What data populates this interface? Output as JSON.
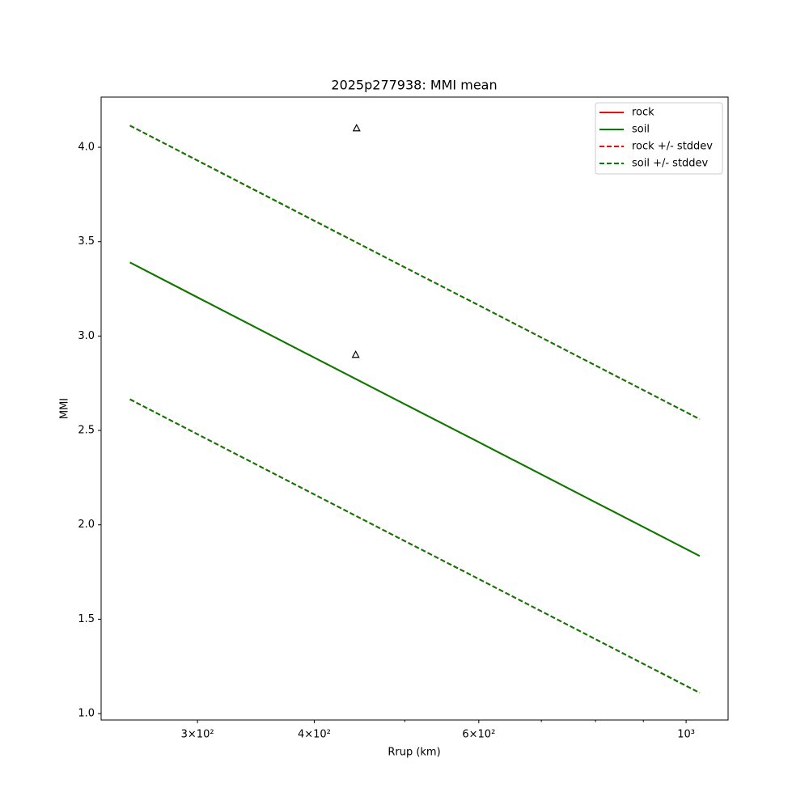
{
  "chart_data": {
    "type": "line",
    "title": "2025p277938: MMI mean",
    "xlabel": "Rrup (km)",
    "ylabel": "MMI",
    "xscale": "log",
    "x": [
      254,
      300,
      400,
      500,
      600,
      800,
      1034
    ],
    "series": [
      {
        "name": "rock",
        "color": "#ff0000",
        "style": "solid",
        "values": [
          3.39,
          3.205,
          2.886,
          2.639,
          2.438,
          2.119,
          1.835
        ]
      },
      {
        "name": "soil",
        "color": "#008000",
        "style": "solid",
        "values": [
          3.39,
          3.205,
          2.886,
          2.639,
          2.438,
          2.119,
          1.835
        ]
      },
      {
        "name": "rock +/- stddev",
        "color": "#ff0000",
        "style": "dashed",
        "upper": [
          4.115,
          3.93,
          3.611,
          3.364,
          3.163,
          2.844,
          2.56
        ],
        "lower": [
          2.665,
          2.48,
          2.161,
          1.914,
          1.713,
          1.394,
          1.11
        ]
      },
      {
        "name": "soil +/- stddev",
        "color": "#008000",
        "style": "dashed",
        "upper": [
          4.115,
          3.93,
          3.611,
          3.364,
          3.163,
          2.844,
          2.56
        ],
        "lower": [
          2.665,
          2.48,
          2.161,
          1.914,
          1.713,
          1.394,
          1.11
        ]
      }
    ],
    "observations": {
      "x": [
        444,
        443
      ],
      "values": [
        4.1,
        2.9
      ],
      "marker": "triangle",
      "color": "#000000"
    },
    "xlim": [
      236.6,
      1109
    ],
    "ylim": [
      0.966,
      4.266
    ],
    "xticks": [
      {
        "value": 300,
        "label": "3×10²"
      },
      {
        "value": 400,
        "label": "4×10²"
      },
      {
        "value": 600,
        "label": "6×10²"
      },
      {
        "value": 1000,
        "label": "10³"
      }
    ],
    "xminorticks": [
      500,
      700,
      800,
      900
    ],
    "yticks": [
      {
        "value": 1.0,
        "label": "1.0"
      },
      1.5,
      {
        "value": 2.0,
        "label": "2.0"
      },
      2.5,
      {
        "value": 3.0,
        "label": "3.0"
      },
      3.5,
      {
        "value": 4.0,
        "label": "4.0"
      }
    ],
    "legend": "upper right"
  }
}
